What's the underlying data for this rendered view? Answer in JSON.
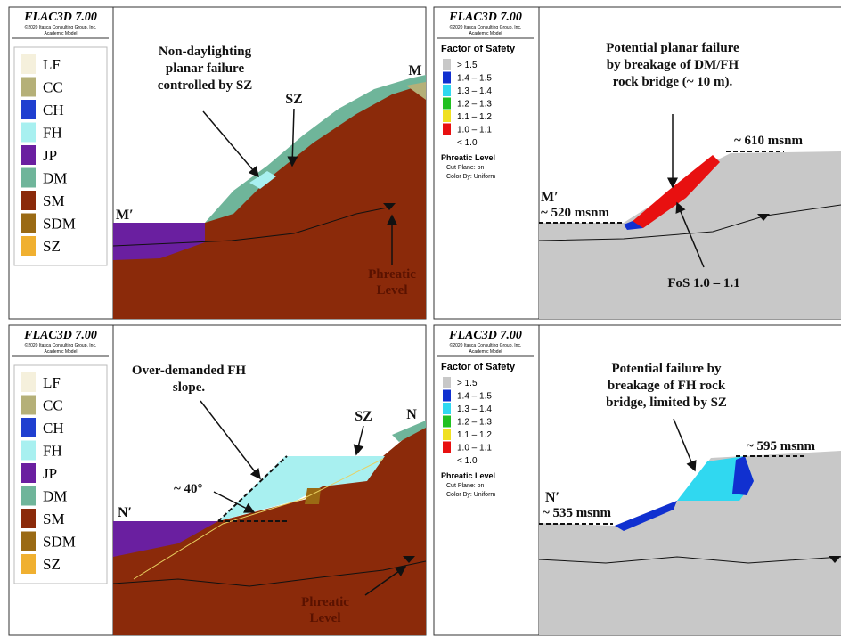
{
  "panels": [
    {
      "header": {
        "title": "FLAC3D 7.00",
        "copyright": "©2020 Itasca Consulting Group, Inc.",
        "model": "Academic Model"
      },
      "legend": {
        "items": [
          {
            "label": "LF",
            "color": "#f5f0dc"
          },
          {
            "label": "CC",
            "color": "#b5b078"
          },
          {
            "label": "CH",
            "color": "#1f3fd0"
          },
          {
            "label": "FH",
            "color": "#a8f0f0"
          },
          {
            "label": "JP",
            "color": "#6a1fa0"
          },
          {
            "label": "DM",
            "color": "#6fb59a"
          },
          {
            "label": "SM",
            "color": "#8b2a0a"
          },
          {
            "label": "SDM",
            "color": "#9a6a14"
          },
          {
            "label": "SZ",
            "color": "#f0b030"
          }
        ]
      },
      "annotations": [
        "Non-daylighting",
        "planar failure",
        "controlled by SZ",
        "SZ",
        "M",
        "M′",
        "Phreatic",
        "Level"
      ]
    },
    {
      "header": {
        "title": "FLAC3D 7.00",
        "copyright": "©2020 Itasca Consulting Group, Inc.",
        "model": "Academic Model"
      },
      "legend": {
        "title": "Factor of Safety",
        "items": [
          {
            "label": "> 1.5",
            "color": "#c8c8c8"
          },
          {
            "label": "1.4 – 1.5",
            "color": "#1030d0"
          },
          {
            "label": "1.3 – 1.4",
            "color": "#30d8f0"
          },
          {
            "label": "1.2 – 1.3",
            "color": "#20c020"
          },
          {
            "label": "1.1 – 1.2",
            "color": "#f0e020"
          },
          {
            "label": "1.0 – 1.1",
            "color": "#e81010"
          },
          {
            "label": "< 1.0",
            "color": "#ffffff"
          }
        ],
        "notes": [
          "Phreatic Level",
          "Cut Plane: on",
          "Color By: Uniform"
        ]
      },
      "annotations": [
        "Potential planar failure",
        "by breakage of DM/FH",
        "rock bridge (~ 10 m).",
        "~ 610 msnm",
        "M′",
        "~ 520 msnm",
        "FoS 1.0 – 1.1"
      ]
    },
    {
      "header": {
        "title": "FLAC3D 7.00",
        "copyright": "©2020 Itasca Consulting Group, Inc.",
        "model": "Academic Model"
      },
      "legend": {
        "items": [
          {
            "label": "LF",
            "color": "#f5f0dc"
          },
          {
            "label": "CC",
            "color": "#b5b078"
          },
          {
            "label": "CH",
            "color": "#1f3fd0"
          },
          {
            "label": "FH",
            "color": "#a8f0f0"
          },
          {
            "label": "JP",
            "color": "#6a1fa0"
          },
          {
            "label": "DM",
            "color": "#6fb59a"
          },
          {
            "label": "SM",
            "color": "#8b2a0a"
          },
          {
            "label": "SDM",
            "color": "#9a6a14"
          },
          {
            "label": "SZ",
            "color": "#f0b030"
          }
        ]
      },
      "annotations": [
        "Over-demanded FH",
        "slope.",
        "SZ",
        "N",
        "~ 40°",
        "N′",
        "Phreatic",
        "Level"
      ]
    },
    {
      "header": {
        "title": "FLAC3D 7.00",
        "copyright": "©2020 Itasca Consulting Group, Inc.",
        "model": "Academic Model"
      },
      "legend": {
        "title": "Factor of Safety",
        "items": [
          {
            "label": "> 1.5",
            "color": "#c8c8c8"
          },
          {
            "label": "1.4 – 1.5",
            "color": "#1030d0"
          },
          {
            "label": "1.3 – 1.4",
            "color": "#30d8f0"
          },
          {
            "label": "1.2 – 1.3",
            "color": "#20c020"
          },
          {
            "label": "1.1 – 1.2",
            "color": "#f0e020"
          },
          {
            "label": "1.0 – 1.1",
            "color": "#e81010"
          },
          {
            "label": "< 1.0",
            "color": "#ffffff"
          }
        ],
        "notes": [
          "Phreatic Level",
          "Cut Plane: on",
          "Color By: Uniform"
        ]
      },
      "annotations": [
        "Potential failure by",
        "breakage of FH rock",
        "bridge, limited by SZ",
        "~ 595 msnm",
        "N′",
        "~ 535 msnm"
      ]
    }
  ]
}
